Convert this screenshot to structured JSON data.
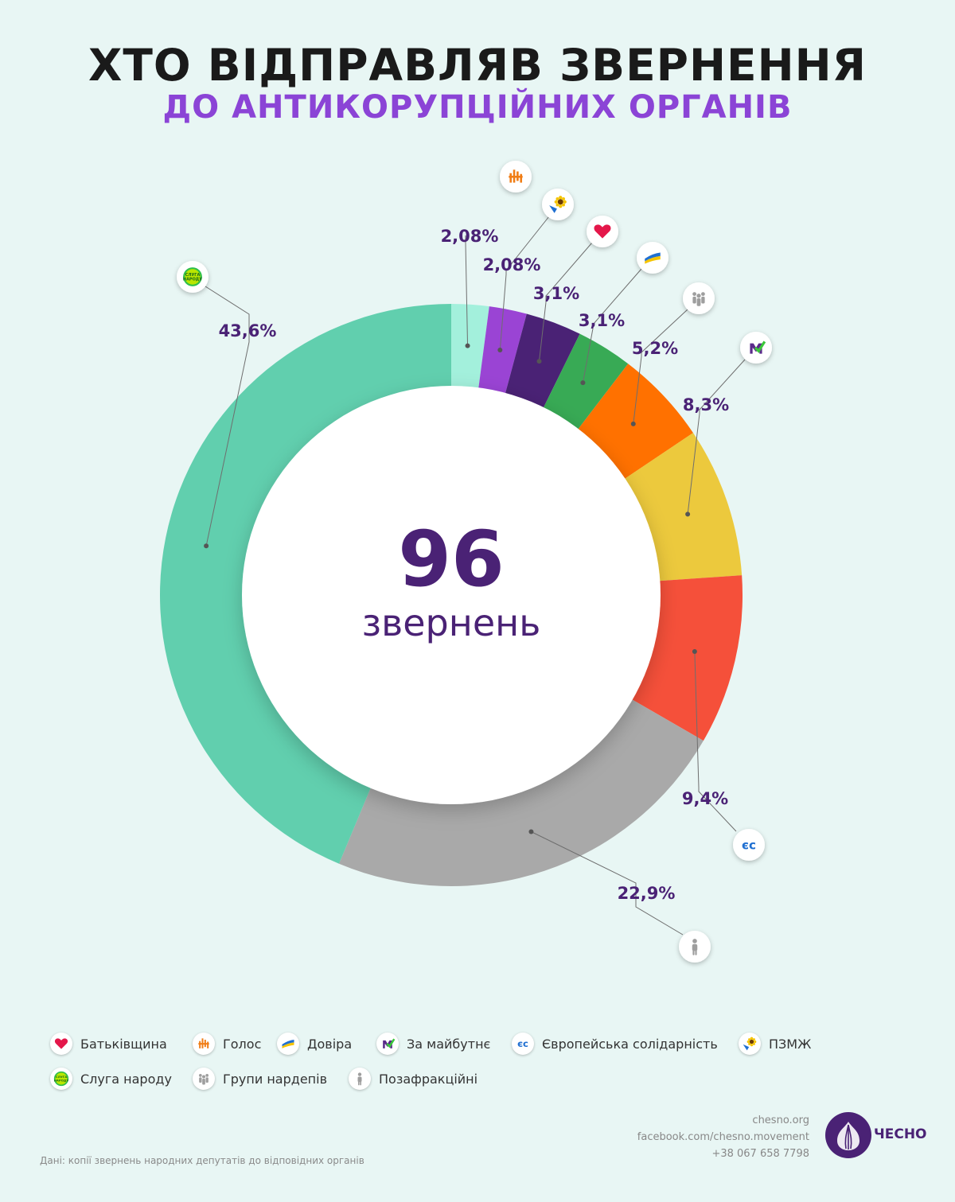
{
  "header": {
    "title": "ХТО ВІДПРАВЛЯВ ЗВЕРНЕННЯ",
    "subtitle": "ДО АНТИКОРУПЦІЙНИХ ОРГАНІВ"
  },
  "center": {
    "value": "96",
    "label": "звернень"
  },
  "chart_data": {
    "type": "pie",
    "total": 96,
    "slices": [
      {
        "label": "Голос",
        "value": 2.08,
        "display": "2,08%",
        "color": "#a3f0dc",
        "icon": "holos-icon"
      },
      {
        "label": "ПЗМЖ",
        "value": 2.08,
        "display": "2,08%",
        "color": "#9a44d4",
        "icon": "pzmzh-icon"
      },
      {
        "label": "Батьківщина",
        "value": 3.1,
        "display": "3,1%",
        "color": "#4a2275",
        "icon": "heart-icon"
      },
      {
        "label": "Довіра",
        "value": 3.1,
        "display": "3,1%",
        "color": "#38aa55",
        "icon": "dovira-icon"
      },
      {
        "label": "Групи нардепів",
        "value": 5.2,
        "display": "5,2%",
        "color": "#ff7100",
        "icon": "groups-icon"
      },
      {
        "label": "За майбутнє",
        "value": 8.3,
        "display": "8,3%",
        "color": "#ecc93d",
        "icon": "za-maibutnie-icon"
      },
      {
        "label": "Європейська солідарність",
        "value": 9.4,
        "display": "9,4%",
        "color": "#f5503a",
        "icon": "es-icon"
      },
      {
        "label": "Позафракційні",
        "value": 22.9,
        "display": "22,9%",
        "color": "#a9a9a9",
        "icon": "person-icon"
      },
      {
        "label": "Слуга народу",
        "value": 43.6,
        "display": "43,6%",
        "color": "#61cfae",
        "icon": "sluha-narodu-icon"
      }
    ]
  },
  "legend": [
    {
      "label": "Батьківщина",
      "icon": "heart-icon"
    },
    {
      "label": "Голос",
      "icon": "holos-icon"
    },
    {
      "label": "Довіра",
      "icon": "dovira-icon"
    },
    {
      "label": "За майбутнє",
      "icon": "za-maibutnie-icon"
    },
    {
      "label": "Європейська солідарність",
      "icon": "es-icon"
    },
    {
      "label": "ПЗМЖ",
      "icon": "pzmzh-icon"
    },
    {
      "label": "Слуга народу",
      "icon": "sluha-narodu-icon"
    },
    {
      "label": "Групи нардепів",
      "icon": "groups-icon"
    },
    {
      "label": "Позафракційні",
      "icon": "person-icon"
    }
  ],
  "icon_text": {
    "es": "єс",
    "sluha_line1": "СЛУГА",
    "sluha_line2": "НАРОДУ"
  },
  "footer": {
    "site": "chesno.org",
    "facebook": "facebook.com/chesno.movement",
    "phone": "+38 067 658 7798",
    "brand": "ЧЕСНО",
    "source": "Дані: копії звернень народних депутатів до відповідних органів"
  }
}
